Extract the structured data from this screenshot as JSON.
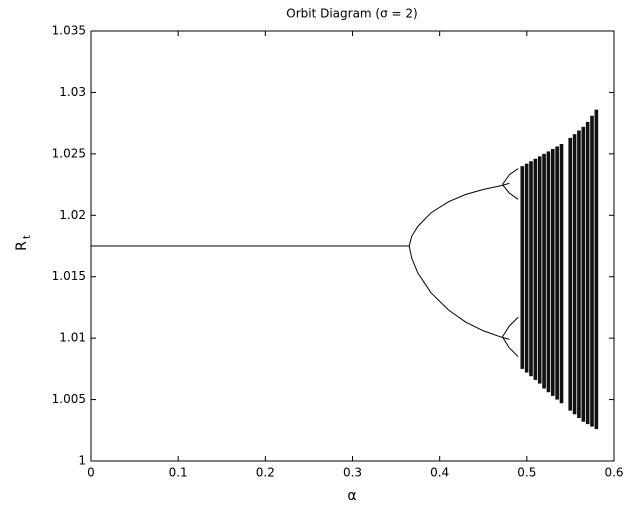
{
  "chart_data": {
    "type": "scatter",
    "title": "Orbit Diagram (σ = 2)",
    "xlabel": "α",
    "ylabel": "R",
    "ylabel_subscript": "t",
    "xlim": [
      0,
      0.6
    ],
    "xticks": [
      0,
      0.1,
      0.2,
      0.3,
      0.4,
      0.5,
      0.6
    ],
    "ylim": [
      1,
      1.035
    ],
    "yticks": [
      1,
      1.005,
      1.01,
      1.015,
      1.02,
      1.025,
      1.03,
      1.035
    ],
    "series": [
      {
        "type": "line",
        "color": "#000000",
        "x": [
          0,
          0.365
        ],
        "y": [
          1.0175,
          1.0175
        ]
      },
      {
        "type": "line",
        "color": "#000000",
        "x": [
          0.365,
          0.368,
          0.375,
          0.39,
          0.41,
          0.43,
          0.45,
          0.47,
          0.48
        ],
        "y": [
          1.0175,
          1.0183,
          1.0191,
          1.0202,
          1.0211,
          1.0217,
          1.0221,
          1.0224,
          1.0226
        ]
      },
      {
        "type": "line",
        "color": "#000000",
        "x": [
          0.365,
          0.368,
          0.375,
          0.39,
          0.41,
          0.43,
          0.45,
          0.47,
          0.48
        ],
        "y": [
          1.0175,
          1.0165,
          1.0153,
          1.0137,
          1.0123,
          1.0113,
          1.0106,
          1.0101,
          1.0099
        ]
      },
      {
        "type": "line",
        "color": "#000000",
        "x": [
          0.472,
          0.48,
          0.49
        ],
        "y": [
          1.0225,
          1.0233,
          1.0238
        ]
      },
      {
        "type": "line",
        "color": "#000000",
        "x": [
          0.472,
          0.48,
          0.49
        ],
        "y": [
          1.0225,
          1.0218,
          1.0213
        ]
      },
      {
        "type": "line",
        "color": "#000000",
        "x": [
          0.472,
          0.48,
          0.49
        ],
        "y": [
          1.0101,
          1.011,
          1.0117
        ]
      },
      {
        "type": "line",
        "color": "#000000",
        "x": [
          0.472,
          0.48,
          0.49
        ],
        "y": [
          1.0101,
          1.0092,
          1.0085
        ]
      },
      {
        "type": "range",
        "color": "#111111",
        "x": [
          0.495,
          0.5,
          0.505,
          0.51,
          0.515,
          0.52,
          0.525,
          0.53,
          0.535,
          0.54,
          0.55,
          0.555,
          0.56,
          0.565,
          0.57,
          0.575,
          0.58
        ],
        "low": [
          1.0075,
          1.0072,
          1.0069,
          1.0066,
          1.0063,
          1.0059,
          1.0056,
          1.0053,
          1.005,
          1.0047,
          1.0041,
          1.0038,
          1.0035,
          1.0032,
          1.003,
          1.0028,
          1.0026
        ],
        "high": [
          1.024,
          1.0242,
          1.0244,
          1.0246,
          1.0248,
          1.025,
          1.0252,
          1.0254,
          1.0256,
          1.0258,
          1.0263,
          1.0266,
          1.0269,
          1.0272,
          1.0276,
          1.0281,
          1.0286
        ]
      }
    ]
  }
}
